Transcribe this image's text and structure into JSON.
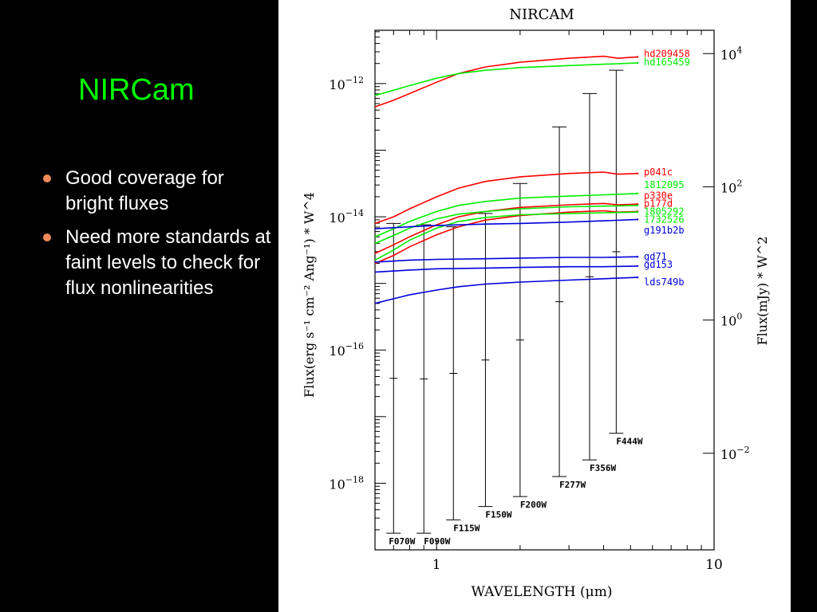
{
  "slide": {
    "title": "NIRCam",
    "bullets": [
      "Good coverage for bright fluxes",
      "Need more standards at faint levels to check for flux nonlinearities"
    ],
    "colors": {
      "title": "#00ff00",
      "bullet_dot": "#f08a5a",
      "text": "#ffffff",
      "background": "#000000"
    }
  },
  "chart_data": {
    "type": "line",
    "title": "NIRCAM",
    "xlabel": "WAVELENGTH (μm)",
    "ylabel_left": "Flux(erg s⁻¹ cm⁻² Ang⁻¹) * W^4",
    "ylabel_right": "Flux(mJy) * W^2",
    "x_scale": "log",
    "y_scale": "log",
    "xlim": [
      0.6,
      10
    ],
    "ylim_log10": [
      -19,
      -11.2
    ],
    "x_tick_labels": [
      {
        "value": 1,
        "label": "1"
      },
      {
        "value": 10,
        "label": "10"
      }
    ],
    "y_tick_labels": [
      {
        "value": -12,
        "base": "10",
        "exp": "−12"
      },
      {
        "value": -14,
        "base": "10",
        "exp": "−14"
      },
      {
        "value": -16,
        "base": "10",
        "exp": "−16"
      },
      {
        "value": -18,
        "base": "10",
        "exp": "−18"
      }
    ],
    "y2_tick_labels": [
      {
        "value": -11.55,
        "base": "10",
        "exp": "4"
      },
      {
        "value": -13.55,
        "base": "10",
        "exp": "2"
      },
      {
        "value": -15.55,
        "base": "10",
        "exp": "0"
      },
      {
        "value": -17.55,
        "base": "10",
        "exp": "−2"
      }
    ],
    "series": [
      {
        "name": "hd209458",
        "color": "#ff0000",
        "x": [
          0.6,
          0.7,
          0.8,
          1.0,
          1.2,
          1.5,
          2.0,
          3.0,
          4.0,
          4.5,
          5.3
        ],
        "y": [
          -12.35,
          -12.25,
          -12.15,
          -11.98,
          -11.85,
          -11.75,
          -11.68,
          -11.62,
          -11.59,
          -11.62,
          -11.6
        ],
        "label_y": -11.55
      },
      {
        "name": "hd165459",
        "color": "#00ee00",
        "x": [
          0.6,
          0.7,
          0.8,
          1.0,
          1.2,
          1.5,
          2.0,
          3.0,
          4.0,
          5.3
        ],
        "y": [
          -12.18,
          -12.1,
          -12.03,
          -11.92,
          -11.85,
          -11.8,
          -11.76,
          -11.73,
          -11.71,
          -11.69
        ],
        "label_y": -11.68
      },
      {
        "name": "p041c",
        "color": "#ff0000",
        "x": [
          0.6,
          0.7,
          0.8,
          1.0,
          1.2,
          1.5,
          2.0,
          3.0,
          4.0,
          4.5,
          5.3
        ],
        "y": [
          -14.1,
          -14.0,
          -13.88,
          -13.7,
          -13.57,
          -13.47,
          -13.4,
          -13.35,
          -13.33,
          -13.36,
          -13.35
        ],
        "label_y": -13.33
      },
      {
        "name": "1812095",
        "color": "#00ee00",
        "x": [
          0.6,
          0.7,
          0.8,
          1.0,
          1.2,
          1.5,
          2.0,
          3.0,
          4.0,
          5.3
        ],
        "y": [
          -14.3,
          -14.18,
          -14.07,
          -13.92,
          -13.83,
          -13.77,
          -13.72,
          -13.69,
          -13.67,
          -13.65
        ],
        "label_y": -13.52
      },
      {
        "name": "p330e",
        "color": "#ff0000",
        "x": [
          0.6,
          0.7,
          0.8,
          1.0,
          1.2,
          1.5,
          2.0,
          3.0,
          4.0,
          4.5,
          5.3
        ],
        "y": [
          -14.55,
          -14.42,
          -14.3,
          -14.12,
          -14.0,
          -13.92,
          -13.86,
          -13.82,
          -13.8,
          -13.82,
          -13.81
        ],
        "label_y": -13.68
      },
      {
        "name": "p177d",
        "color": "#ff0000",
        "x": [
          0.6,
          0.7,
          0.8,
          1.0,
          1.2,
          1.5,
          2.0,
          3.0,
          4.0,
          4.5,
          5.3
        ],
        "y": [
          -14.7,
          -14.58,
          -14.45,
          -14.27,
          -14.15,
          -14.05,
          -13.98,
          -13.93,
          -13.91,
          -13.93,
          -13.92
        ],
        "label_y": -13.8
      },
      {
        "name": "1805292",
        "color": "#00ee00",
        "x": [
          0.6,
          0.7,
          0.8,
          1.0,
          1.2,
          1.5,
          2.0,
          3.0,
          4.0,
          5.3
        ],
        "y": [
          -14.4,
          -14.28,
          -14.17,
          -14.03,
          -13.96,
          -13.92,
          -13.88,
          -13.85,
          -13.84,
          -13.83
        ],
        "label_y": -13.92
      },
      {
        "name": "1732526",
        "color": "#00ee00",
        "x": [
          0.6,
          0.7,
          0.8,
          1.0,
          1.2,
          1.5,
          2.0,
          3.0,
          4.0,
          5.3
        ],
        "y": [
          -14.65,
          -14.5,
          -14.35,
          -14.17,
          -14.07,
          -14.01,
          -13.97,
          -13.95,
          -13.94,
          -13.93
        ],
        "label_y": -14.04
      },
      {
        "name": "g191b2b",
        "color": "#0000dd",
        "x": [
          0.6,
          0.8,
          1.0,
          1.5,
          2.0,
          3.0,
          4.0,
          5.3
        ],
        "y": [
          -14.18,
          -14.15,
          -14.13,
          -14.11,
          -14.1,
          -14.08,
          -14.06,
          -14.04
        ],
        "label_y": -14.2
      },
      {
        "name": "gd71",
        "color": "#0000dd",
        "x": [
          0.6,
          0.8,
          1.0,
          1.5,
          2.0,
          3.0,
          4.0,
          5.3
        ],
        "y": [
          -14.68,
          -14.65,
          -14.64,
          -14.63,
          -14.62,
          -14.61,
          -14.61,
          -14.6
        ],
        "label_y": -14.6
      },
      {
        "name": "gd153",
        "color": "#0000dd",
        "x": [
          0.6,
          0.8,
          1.0,
          1.5,
          2.0,
          3.0,
          4.0,
          5.3
        ],
        "y": [
          -14.83,
          -14.8,
          -14.78,
          -14.77,
          -14.76,
          -14.75,
          -14.75,
          -14.74
        ],
        "label_y": -14.72
      },
      {
        "name": "lds749b",
        "color": "#0000dd",
        "x": [
          0.6,
          0.7,
          0.8,
          1.0,
          1.2,
          1.5,
          2.0,
          3.0,
          4.0,
          5.3
        ],
        "y": [
          -15.3,
          -15.23,
          -15.17,
          -15.1,
          -15.05,
          -15.01,
          -14.98,
          -14.95,
          -14.93,
          -14.91
        ],
        "label_y": -14.98
      }
    ],
    "filters": [
      {
        "name": "F070W",
        "x": 0.7,
        "top": -14.1,
        "bottom": -18.75
      },
      {
        "name": "F090W",
        "x": 0.9,
        "top": -14.12,
        "bottom": -18.75
      },
      {
        "name": "F115W",
        "x": 1.15,
        "top": -14.15,
        "bottom": -18.55
      },
      {
        "name": "F150W",
        "x": 1.5,
        "top": -13.95,
        "bottom": -18.35
      },
      {
        "name": "F200W",
        "x": 2.0,
        "top": -13.5,
        "bottom": -18.2
      },
      {
        "name": "F277W",
        "x": 2.77,
        "top": -12.65,
        "bottom": -17.9
      },
      {
        "name": "F356W",
        "x": 3.56,
        "top": -12.15,
        "bottom": -17.65
      },
      {
        "name": "F444W",
        "x": 4.44,
        "top": -11.8,
        "bottom": -17.25
      }
    ],
    "colors": {
      "axes": "#000000",
      "errorbars": "#000000"
    }
  }
}
